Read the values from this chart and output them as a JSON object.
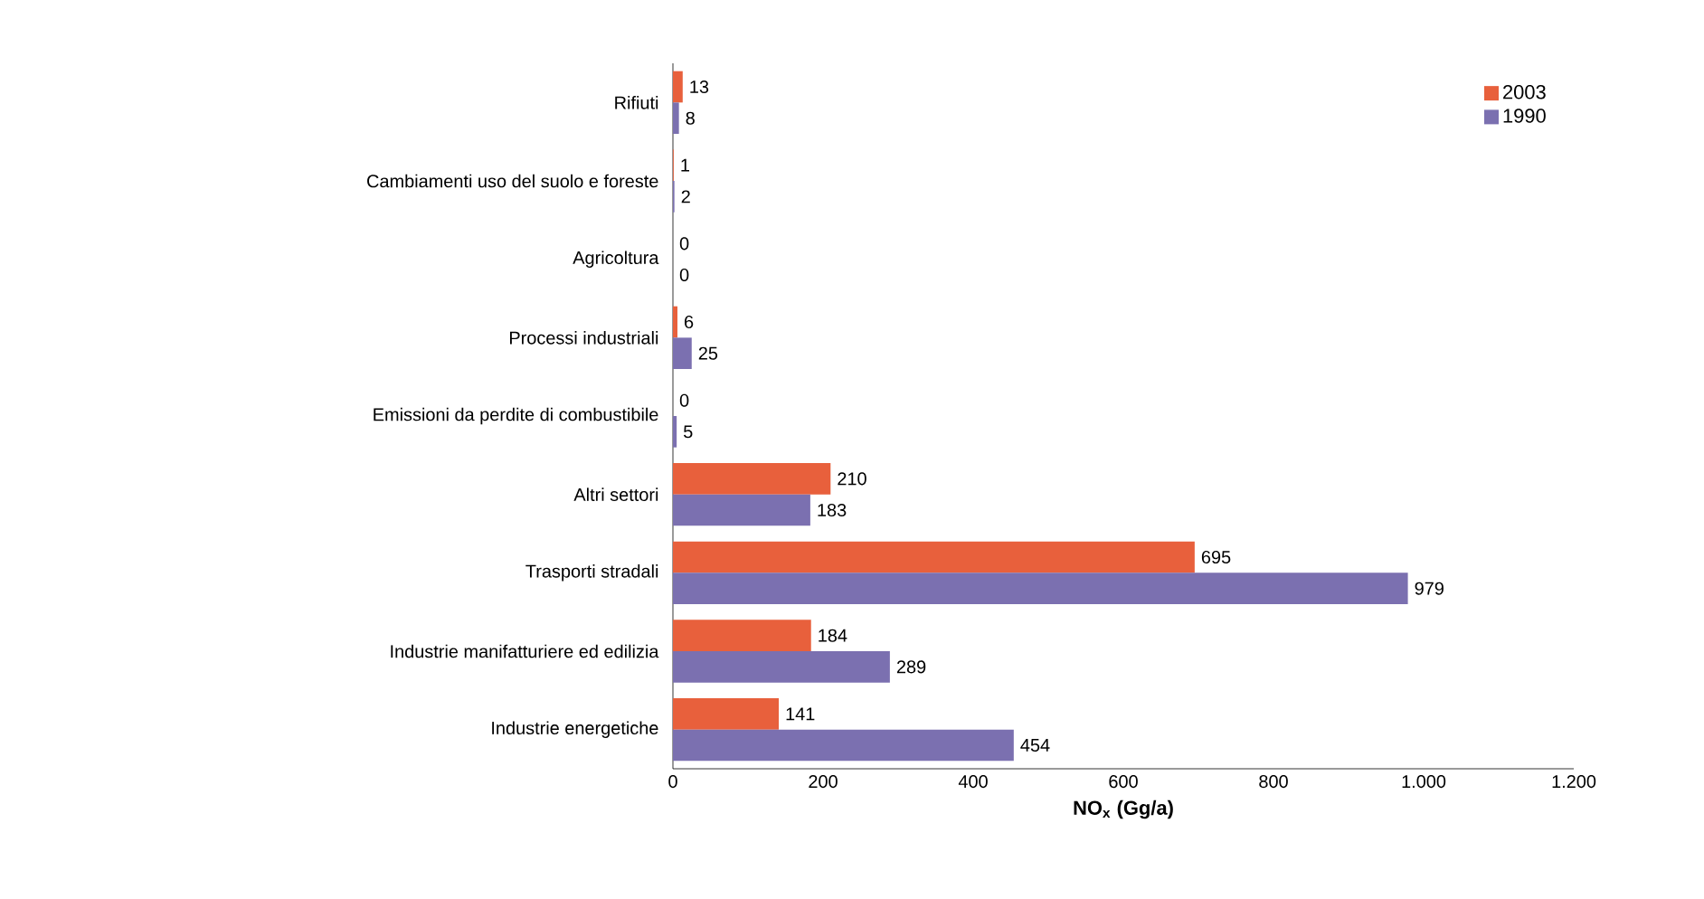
{
  "chart_data": {
    "type": "bar",
    "orientation": "horizontal",
    "xlabel": "NO$_{x}$ (Gg/a)",
    "categories": [
      "Rifiuti",
      "Cambiamenti uso del suolo e foreste",
      "Agricoltura",
      "Processi industriali",
      "Emissioni da perdite di combustibile",
      "Altri settori",
      "Trasporti stradali",
      "Industrie manifatturiere ed edilizia",
      "Industrie energetiche"
    ],
    "series": [
      {
        "name": "2003",
        "color": "#e8603c",
        "values": [
          13,
          1,
          0,
          6,
          0,
          210,
          695,
          184,
          141
        ]
      },
      {
        "name": "1990",
        "color": "#7b70b0",
        "values": [
          8,
          2,
          0,
          25,
          5,
          183,
          979,
          289,
          454
        ]
      }
    ],
    "xlim": [
      0,
      1200
    ],
    "xticks": [
      0,
      200,
      400,
      600,
      800,
      {
        "value": 1000,
        "label": "1.000"
      },
      {
        "value": 1200,
        "label": "1.200"
      }
    ],
    "data_labels": true,
    "legend": "top right",
    "grid": false
  }
}
